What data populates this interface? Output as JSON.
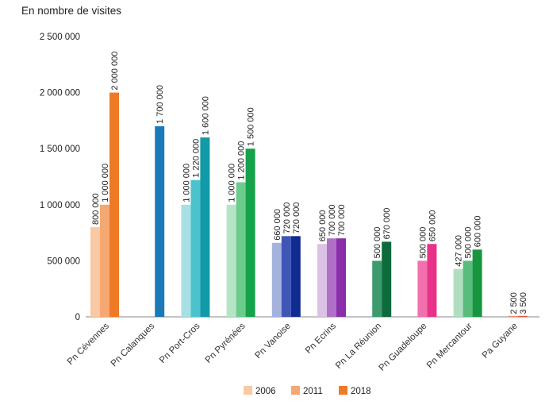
{
  "chart_data": {
    "type": "bar",
    "ylabel": "En nombre de visites",
    "ylim": [
      0,
      2500000
    ],
    "yticks": [
      0,
      500000,
      1000000,
      1500000,
      2000000,
      2500000
    ],
    "ytick_labels": [
      "0",
      "500 000",
      "1 000 000",
      "1 500 000",
      "2 000 000",
      "2 500 000"
    ],
    "grid": false,
    "legend_position": "bottom-center",
    "series_names": [
      "2006",
      "2011",
      "2018"
    ],
    "legend_colors": [
      "#f9c9a4",
      "#f6a872",
      "#ee7a26"
    ],
    "categories": [
      {
        "label": "Pn Cévennes",
        "values": [
          800000,
          1000000,
          2000000
        ],
        "value_labels": [
          "800 000",
          "1 000 000",
          "2 000 000"
        ],
        "colors": [
          "#f9c9a4",
          "#f6a872",
          "#ee7a26"
        ]
      },
      {
        "label": "Pn Calanques",
        "values": [
          null,
          null,
          1700000
        ],
        "value_labels": [
          "",
          "",
          "1 700 000"
        ],
        "colors": [
          "#b3d7ea",
          "#5aa9d3",
          "#1a7ab8"
        ]
      },
      {
        "label": "Pn Port-Cros",
        "values": [
          1000000,
          1220000,
          1600000
        ],
        "value_labels": [
          "1 000 000",
          "1 220 000",
          "1 600 000"
        ],
        "colors": [
          "#a7e0e4",
          "#4cc3cc",
          "#119aa8"
        ]
      },
      {
        "label": "Pn Pyrénées",
        "values": [
          1000000,
          1200000,
          1500000
        ],
        "value_labels": [
          "1 000 000",
          "1 200 000",
          "1 500 000"
        ],
        "colors": [
          "#b5e5c6",
          "#6ccc8c",
          "#16a14b"
        ]
      },
      {
        "label": "Pn Vanoise",
        "values": [
          660000,
          720000,
          720000
        ],
        "value_labels": [
          "660 000",
          "720 000",
          "720 000"
        ],
        "colors": [
          "#a5b2dd",
          "#3f56b7",
          "#102c91"
        ]
      },
      {
        "label": "Pn Ecrins",
        "values": [
          650000,
          700000,
          700000
        ],
        "value_labels": [
          "650 000",
          "700 000",
          "700 000"
        ],
        "colors": [
          "#dcc2e4",
          "#b170c8",
          "#8a2fa9"
        ]
      },
      {
        "label": "Pn La Réunion",
        "values": [
          null,
          500000,
          670000
        ],
        "value_labels": [
          "",
          "500 000",
          "670 000"
        ],
        "colors": [
          "#8ac7a5",
          "#3d9a6c",
          "#0c6b3c"
        ]
      },
      {
        "label": "Pn Guadeloupe",
        "values": [
          null,
          500000,
          650000
        ],
        "value_labels": [
          "",
          "500 000",
          "650 000"
        ],
        "colors": [
          "#f7b4d3",
          "#f270ae",
          "#e83289"
        ]
      },
      {
        "label": "Pn Mercantour",
        "values": [
          427000,
          500000,
          600000
        ],
        "value_labels": [
          "427 000",
          "500 000",
          "600 000"
        ],
        "colors": [
          "#b0dec0",
          "#57bc7c",
          "#17963f"
        ]
      },
      {
        "label": "Pa Guyane",
        "values": [
          null,
          2500,
          3500
        ],
        "value_labels": [
          "",
          "2 500",
          "3 500"
        ],
        "colors": [
          "#f5b8a9",
          "#ee8a76",
          "#e25a3f"
        ]
      }
    ]
  }
}
